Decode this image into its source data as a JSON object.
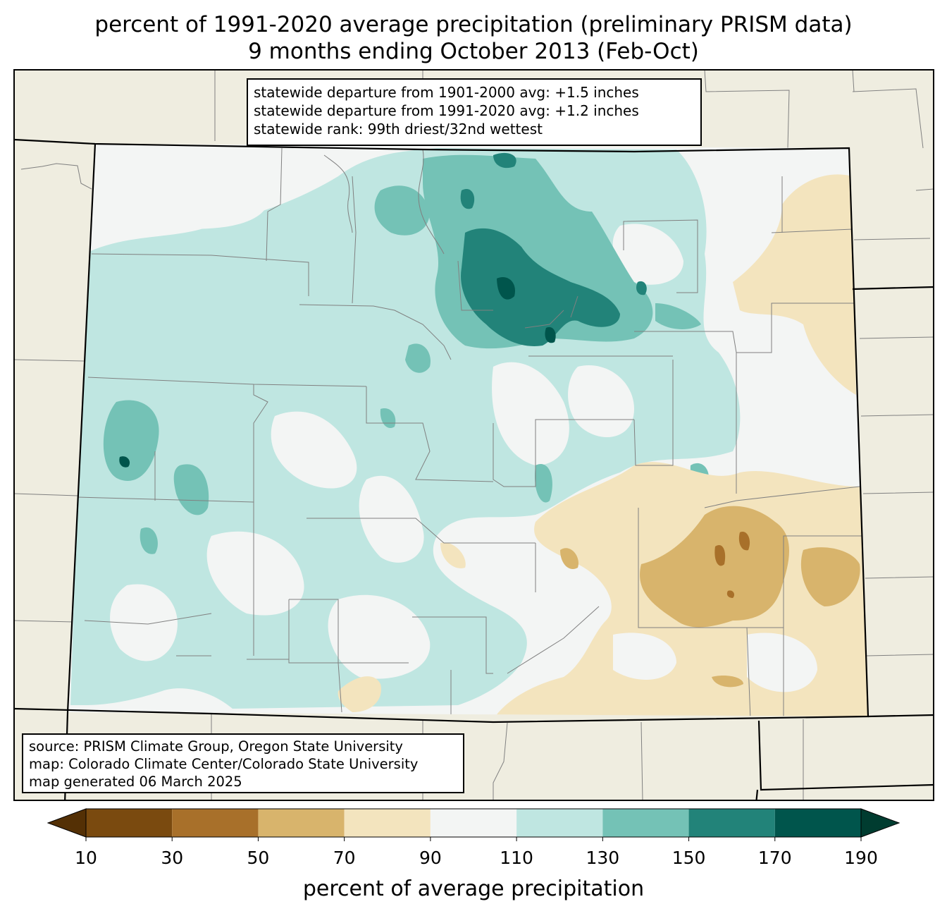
{
  "title": {
    "line1": "percent of 1991-2020 average precipitation (preliminary PRISM data)",
    "line2": "9 months ending October 2013 (Feb-Oct)"
  },
  "stats_box": {
    "line1": "statewide departure from 1901-2000 avg: +1.5 inches",
    "line2": "statewide departure from 1991-2020 avg: +1.2 inches",
    "line3": "statewide rank: 99th driest/32nd wettest"
  },
  "source_box": {
    "line1": "source: PRISM Climate Group, Oregon State University",
    "line2": "map: Colorado Climate Center/Colorado State University",
    "line3": "map generated 06 March 2025"
  },
  "colorbar": {
    "label": "percent of average precipitation",
    "ticks": [
      "10",
      "30",
      "50",
      "70",
      "90",
      "110",
      "130",
      "150",
      "170",
      "190"
    ],
    "under_color": "#543005",
    "over_color": "#003c30",
    "colors": [
      "#8c510a",
      "#bf812d",
      "#dfc27d",
      "#f6e8c3",
      "#f5f5f5",
      "#c7eae5",
      "#80cdc1",
      "#35978f",
      "#01665e",
      "#00503f"
    ],
    "bins": [
      "#7a4a0f",
      "#a8702a",
      "#d8b46c",
      "#f3e4be",
      "#f3f5f4",
      "#bfe6e1",
      "#74c2b6",
      "#228379",
      "#00554c"
    ]
  },
  "colors": {
    "land_outside": "#efede0",
    "state_border": "#000000",
    "county_lines": "#808080"
  }
}
